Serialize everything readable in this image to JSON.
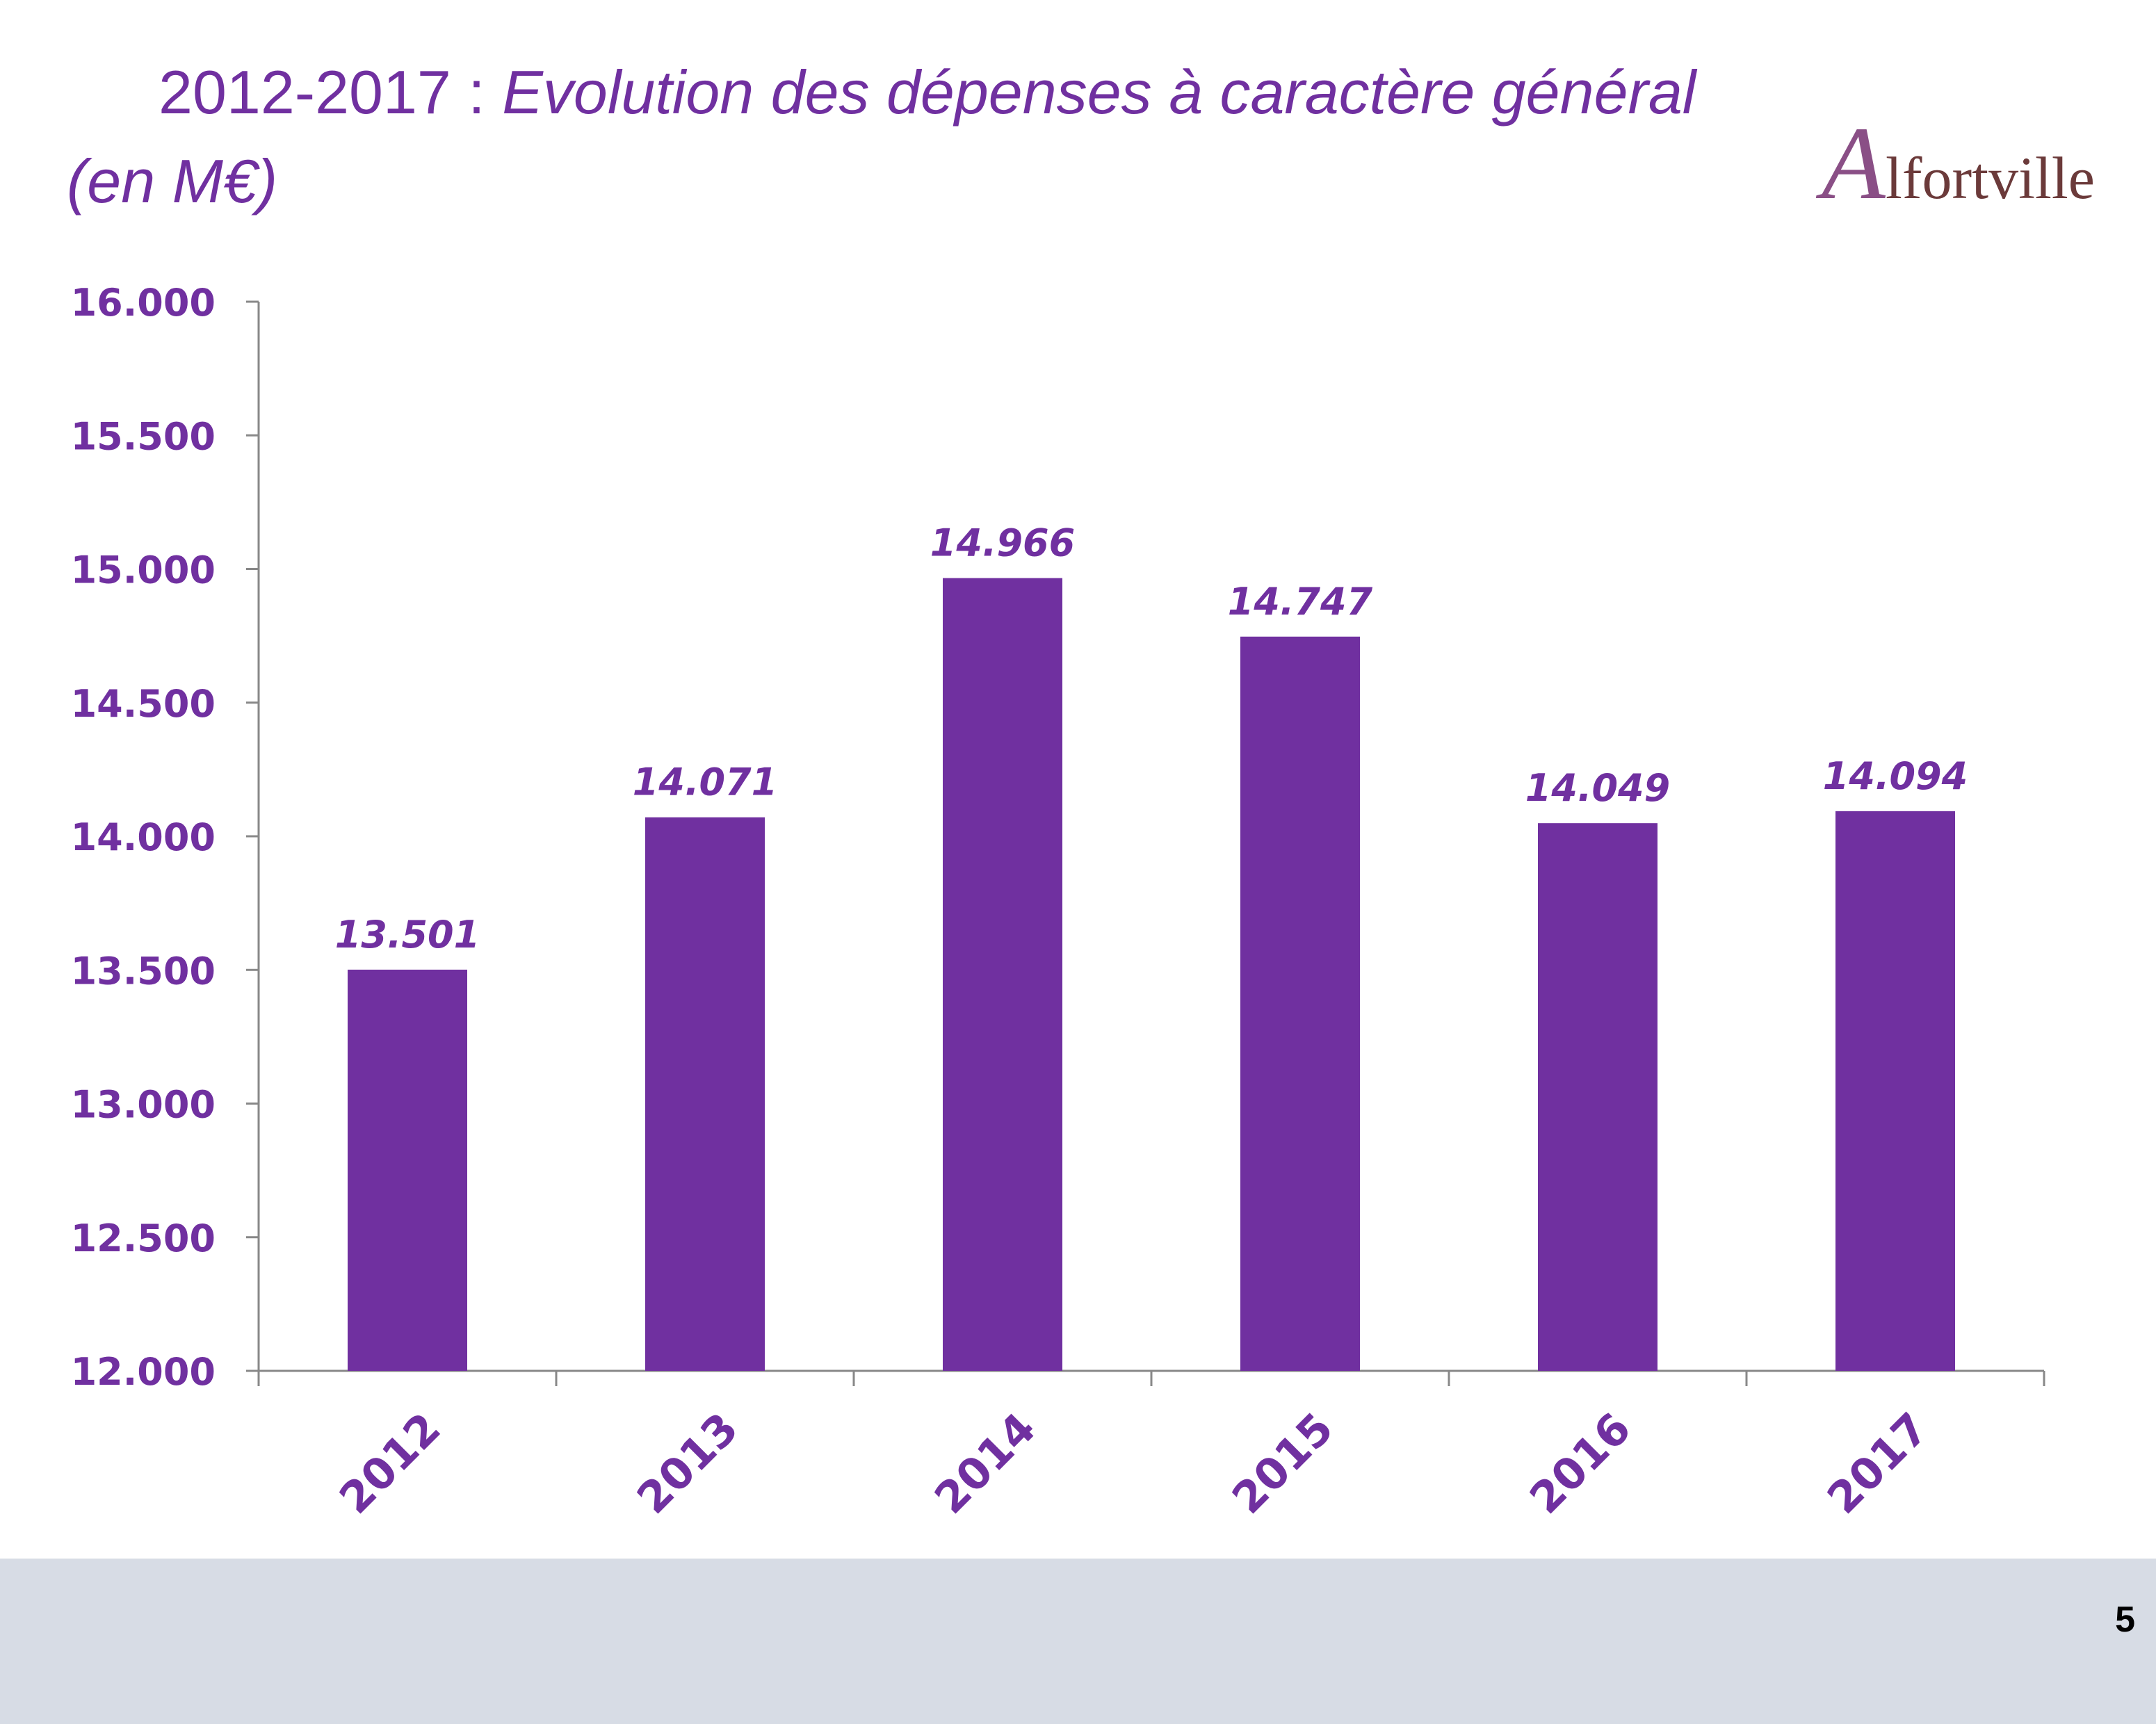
{
  "header": {
    "title_plain": "2012-2017 : ",
    "title_italic": "Evolution des dépenses à caractère général",
    "title_unit": "(en M€)"
  },
  "logo": {
    "cap": "A",
    "rest": "lfortville"
  },
  "page_number": "5",
  "colors": {
    "accent": "#7030a0",
    "bar": "#7030a0",
    "axis": "#888888",
    "footer": "#d7dce5"
  },
  "chart_data": {
    "type": "bar",
    "categories": [
      "2012",
      "2013",
      "2014",
      "2015",
      "2016",
      "2017"
    ],
    "values": [
      13501,
      14071,
      14966,
      14747,
      14049,
      14094
    ],
    "value_labels": [
      "13.501",
      "14.071",
      "14.966",
      "14.747",
      "14.049",
      "14.094"
    ],
    "ylim": [
      12000,
      16000
    ],
    "yticks": [
      12000,
      12500,
      13000,
      13500,
      14000,
      14500,
      15000,
      15500,
      16000
    ],
    "ytick_labels": [
      "12.000",
      "12.500",
      "13.000",
      "13.500",
      "14.000",
      "14.500",
      "15.000",
      "15.500",
      "16.000"
    ],
    "grid": false,
    "legend": false
  }
}
